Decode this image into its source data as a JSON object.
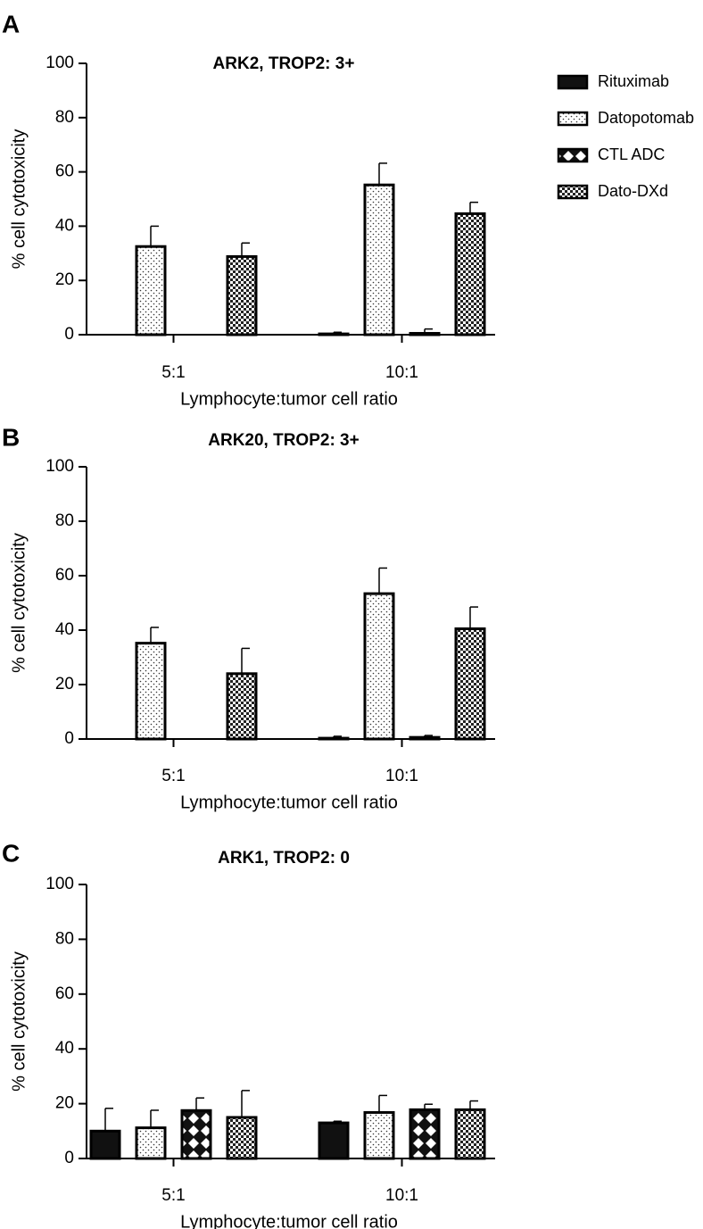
{
  "legend": {
    "entries": [
      {
        "label": "Rituximab",
        "pattern": "solid"
      },
      {
        "label": "Datopotomab",
        "pattern": "dots"
      },
      {
        "label": "CTL ADC",
        "pattern": "diamond"
      },
      {
        "label": "Dato-DXd",
        "pattern": "checker"
      }
    ]
  },
  "chart_data": [
    {
      "type": "bar",
      "panel": "A",
      "title": "ARK2, TROP2: 3+",
      "xlabel": "Lymphocyte:tumor cell ratio",
      "ylabel": "% cell cytotoxicity",
      "ylim": [
        0,
        100
      ],
      "yticks": [
        "0",
        "20",
        "40",
        "60",
        "80",
        "100"
      ],
      "categories": [
        "5:1",
        "10:1"
      ],
      "series": [
        {
          "name": "Rituximab",
          "values": [
            0,
            0.3
          ],
          "errors": [
            0,
            0.6
          ]
        },
        {
          "name": "Datopotomab",
          "values": [
            32.5,
            55.2
          ],
          "errors": [
            7.5,
            8.0
          ]
        },
        {
          "name": "CTL ADC",
          "values": [
            0,
            0.5
          ],
          "errors": [
            0,
            1.6
          ]
        },
        {
          "name": "Dato-DXd",
          "values": [
            28.8,
            44.6
          ],
          "errors": [
            5.0,
            4.2
          ]
        }
      ]
    },
    {
      "type": "bar",
      "panel": "B",
      "title": "ARK20, TROP2: 3+",
      "xlabel": "Lymphocyte:tumor cell ratio",
      "ylabel": "% cell cytotoxicity",
      "ylim": [
        0,
        100
      ],
      "yticks": [
        "0",
        "20",
        "40",
        "60",
        "80",
        "100"
      ],
      "categories": [
        "5:1",
        "10:1"
      ],
      "series": [
        {
          "name": "Rituximab",
          "values": [
            0,
            0.3
          ],
          "errors": [
            0,
            0.7
          ]
        },
        {
          "name": "Datopotomab",
          "values": [
            35.2,
            53.4
          ],
          "errors": [
            5.8,
            9.4
          ]
        },
        {
          "name": "CTL ADC",
          "values": [
            0,
            0.6
          ],
          "errors": [
            0,
            0.7
          ]
        },
        {
          "name": "Dato-DXd",
          "values": [
            24.0,
            40.5
          ],
          "errors": [
            9.3,
            8.0
          ]
        }
      ]
    },
    {
      "type": "bar",
      "panel": "C",
      "title": "ARK1, TROP2: 0",
      "xlabel": "Lymphocyte:tumor cell ratio",
      "ylabel": "% cell cytotoxicity",
      "ylim": [
        0,
        100
      ],
      "yticks": [
        "0",
        "20",
        "40",
        "60",
        "80",
        "100"
      ],
      "categories": [
        "5:1",
        "10:1"
      ],
      "series": [
        {
          "name": "Rituximab",
          "values": [
            10.0,
            13.0
          ],
          "errors": [
            8.3,
            0.6
          ]
        },
        {
          "name": "Datopotomab",
          "values": [
            11.2,
            16.8
          ],
          "errors": [
            6.4,
            6.2
          ]
        },
        {
          "name": "CTL ADC",
          "values": [
            17.5,
            17.8
          ],
          "errors": [
            4.6,
            2.0
          ]
        },
        {
          "name": "Dato-DXd",
          "values": [
            15.0,
            17.8
          ],
          "errors": [
            9.8,
            3.2
          ]
        }
      ]
    }
  ]
}
